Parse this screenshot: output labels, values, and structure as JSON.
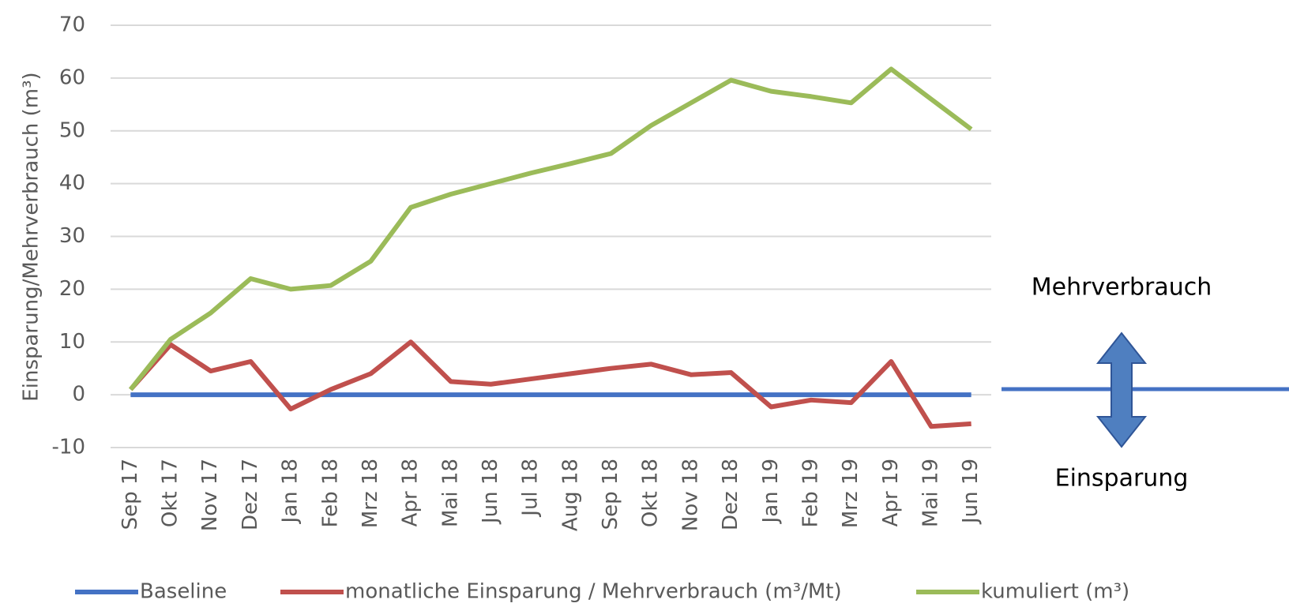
{
  "chart_data": {
    "type": "line",
    "y_label": "Einsparung/Mehrverbrauch (m³)",
    "categories": [
      "Sep 17",
      "Okt 17",
      "Nov 17",
      "Dez 17",
      "Jan 18",
      "Feb 18",
      "Mrz 18",
      "Apr 18",
      "Mai 18",
      "Jun 18",
      "Jul 18",
      "Aug 18",
      "Sep 18",
      "Okt 18",
      "Nov 18",
      "Dez 18",
      "Jan 19",
      "Feb 19",
      "Mrz 19",
      "Apr 19",
      "Mai 19",
      "Jun 19"
    ],
    "series": [
      {
        "name": "Baseline",
        "color": "#4472c4",
        "values": [
          0,
          0,
          0,
          0,
          0,
          0,
          0,
          0,
          0,
          0,
          0,
          0,
          0,
          0,
          0,
          0,
          0,
          0,
          0,
          0,
          0,
          0
        ]
      },
      {
        "name": "monatliche Einsparung / Mehrverbrauch (m³/Mt)",
        "color": "#c0504d",
        "values": [
          1,
          9.5,
          4.5,
          6.3,
          -2.7,
          1,
          4,
          10,
          2.5,
          2,
          3,
          4,
          5,
          5.8,
          3.8,
          4.2,
          -2.3,
          -1,
          -1.5,
          6.3,
          -6,
          -5.5
        ]
      },
      {
        "name": "kumuliert (m³)",
        "color": "#9bbb59",
        "values": [
          1,
          10.5,
          15.5,
          22,
          20,
          20.7,
          25.3,
          35.5,
          38,
          40,
          42,
          43.8,
          45.7,
          51,
          55.3,
          59.6,
          57.5,
          56.5,
          55.3,
          61.7,
          56,
          50.3
        ]
      }
    ],
    "ylim": [
      -10,
      70
    ],
    "yticks": [
      -10,
      0,
      10,
      20,
      30,
      40,
      50,
      60,
      70
    ],
    "grid": true,
    "annotations": [
      "Mehrverbrauch",
      "Einsparung"
    ]
  }
}
